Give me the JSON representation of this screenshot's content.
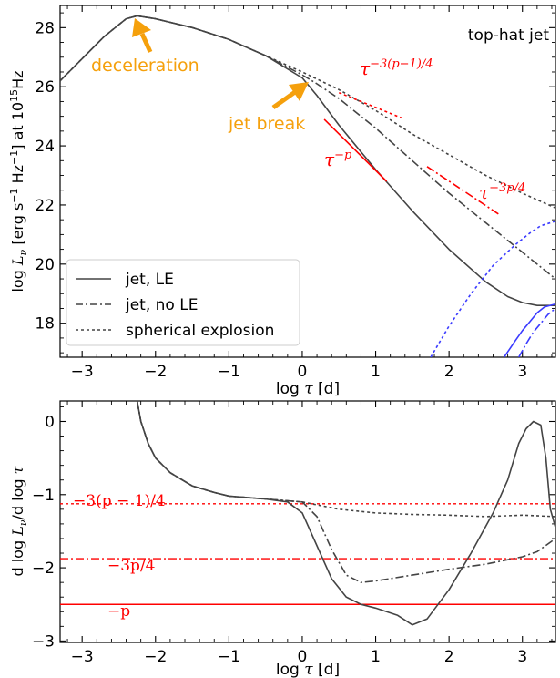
{
  "chart_data": [
    {
      "type": "line",
      "xlabel": "log τ [d]",
      "ylabel": "log L_ν [erg s⁻¹ Hz⁻¹] at 10¹⁵Hz",
      "xlim": [
        -3.3,
        3.45
      ],
      "ylim": [
        16.85,
        28.75
      ],
      "xticks": [
        -3,
        -2,
        -1,
        0,
        1,
        2,
        3
      ],
      "yticks": [
        18,
        20,
        22,
        24,
        26,
        28
      ],
      "title_inset": "top-hat jet",
      "annotations": {
        "deceleration": "deceleration",
        "jet_break": "jet break",
        "slope_spherical": "τ^{-3(p-1)/4}",
        "slope_le": "τ^{-p}",
        "slope_nole": "τ^{-3p/4}"
      },
      "legend": {
        "position": "lower-left",
        "entries": [
          "jet, LE",
          "jet, no LE",
          "spherical explosion"
        ]
      },
      "series": [
        {
          "name": "jet, LE",
          "color": "#444444",
          "dash": "solid",
          "x": [
            -3.3,
            -3.0,
            -2.7,
            -2.4,
            -2.25,
            -2.0,
            -1.5,
            -1.0,
            -0.5,
            0.0,
            0.2,
            0.5,
            0.8,
            1.0,
            1.5,
            2.0,
            2.5,
            2.8,
            3.0,
            3.2,
            3.45
          ],
          "y": [
            26.2,
            26.95,
            27.7,
            28.3,
            28.4,
            28.3,
            28.0,
            27.6,
            27.05,
            26.3,
            25.7,
            24.7,
            23.8,
            23.2,
            21.8,
            20.5,
            19.4,
            18.9,
            18.7,
            18.6,
            18.6
          ]
        },
        {
          "name": "jet, no LE",
          "color": "#444444",
          "dash": "dashdot",
          "x": [
            -3.3,
            -3.0,
            -2.7,
            -2.4,
            -2.25,
            -2.0,
            -1.5,
            -1.0,
            -0.5,
            0.0,
            0.2,
            0.5,
            1.0,
            1.5,
            2.0,
            2.5,
            3.0,
            3.45
          ],
          "y": [
            26.2,
            26.95,
            27.7,
            28.3,
            28.4,
            28.3,
            28.0,
            27.6,
            27.05,
            26.4,
            26.1,
            25.6,
            24.6,
            23.5,
            22.4,
            21.4,
            20.4,
            19.5
          ]
        },
        {
          "name": "spherical explosion",
          "color": "#444444",
          "dash": "dotted",
          "x": [
            -3.3,
            -3.0,
            -2.7,
            -2.4,
            -2.25,
            -2.0,
            -1.5,
            -1.0,
            -0.5,
            0.0,
            0.5,
            1.0,
            1.5,
            2.0,
            2.5,
            3.0,
            3.45
          ],
          "y": [
            26.2,
            26.95,
            27.7,
            28.3,
            28.4,
            28.3,
            28.0,
            27.6,
            27.05,
            26.5,
            25.9,
            25.2,
            24.4,
            23.7,
            23.0,
            22.4,
            21.9
          ]
        },
        {
          "name": "",
          "color": "#3b3bff",
          "dash": "solid",
          "x": [
            2.75,
            2.9,
            3.0,
            3.1,
            3.2,
            3.3,
            3.45
          ],
          "y": [
            16.85,
            17.4,
            17.75,
            18.05,
            18.35,
            18.55,
            18.65
          ]
        },
        {
          "name": "",
          "color": "#3b3bff",
          "dash": "dashdot",
          "x": [
            2.95,
            3.05,
            3.15,
            3.25,
            3.35,
            3.45
          ],
          "y": [
            16.85,
            17.3,
            17.7,
            18.0,
            18.3,
            18.5
          ]
        },
        {
          "name": "",
          "color": "#3b3bff",
          "dash": "dotted",
          "x": [
            1.75,
            2.0,
            2.3,
            2.6,
            2.9,
            3.1,
            3.25,
            3.45
          ],
          "y": [
            16.85,
            17.9,
            19.0,
            19.95,
            20.65,
            21.05,
            21.3,
            21.45
          ]
        },
        {
          "name": "",
          "color": "#ff0000",
          "dash": "dotted",
          "x": [
            0.5,
            1.35
          ],
          "y": [
            25.8,
            24.95
          ]
        },
        {
          "name": "",
          "color": "#ff0000",
          "dash": "solid",
          "x": [
            0.3,
            1.15
          ],
          "y": [
            24.9,
            22.8
          ]
        },
        {
          "name": "",
          "color": "#ff0000",
          "dash": "dashdot",
          "x": [
            1.7,
            2.7
          ],
          "y": [
            23.3,
            21.65
          ]
        }
      ]
    },
    {
      "type": "line",
      "xlabel": "log τ [d]",
      "ylabel": "d log L_ν / d log τ",
      "xlim": [
        -3.3,
        3.45
      ],
      "ylim": [
        -3.02,
        0.28
      ],
      "xticks": [
        -3,
        -2,
        -1,
        0,
        1,
        2,
        3
      ],
      "yticks": [
        -3,
        -2,
        -1,
        0
      ],
      "hlines": [
        {
          "label": "−3(p − 1)/4",
          "y": -1.125,
          "color": "#ff0000",
          "dash": "dotted"
        },
        {
          "label": "−3p/4",
          "y": -1.875,
          "color": "#ff0000",
          "dash": "dashdot"
        },
        {
          "label": "−p",
          "y": -2.5,
          "color": "#ff0000",
          "dash": "solid"
        }
      ],
      "series": [
        {
          "name": "jet, LE",
          "color": "#444444",
          "dash": "solid",
          "x": [
            -2.25,
            -2.2,
            -2.1,
            -2.0,
            -1.8,
            -1.5,
            -1.2,
            -1.0,
            -0.5,
            -0.2,
            0.0,
            0.2,
            0.4,
            0.6,
            0.8,
            1.0,
            1.3,
            1.5,
            1.7,
            2.0,
            2.3,
            2.6,
            2.8,
            2.95,
            3.05,
            3.15,
            3.25,
            3.32,
            3.38,
            3.45
          ],
          "y": [
            0.28,
            0.0,
            -0.3,
            -0.5,
            -0.7,
            -0.88,
            -0.97,
            -1.02,
            -1.06,
            -1.1,
            -1.25,
            -1.7,
            -2.15,
            -2.4,
            -2.5,
            -2.55,
            -2.65,
            -2.78,
            -2.7,
            -2.3,
            -1.8,
            -1.25,
            -0.8,
            -0.3,
            -0.1,
            0.0,
            -0.05,
            -0.5,
            -1.2,
            -1.45
          ]
        },
        {
          "name": "jet, no LE",
          "color": "#444444",
          "dash": "dashdot",
          "x": [
            -2.25,
            -2.2,
            -2.1,
            -2.0,
            -1.8,
            -1.5,
            -1.2,
            -1.0,
            -0.5,
            0.0,
            0.2,
            0.4,
            0.6,
            0.8,
            1.0,
            1.5,
            2.0,
            2.5,
            3.0,
            3.2,
            3.45
          ],
          "y": [
            0.28,
            0.0,
            -0.3,
            -0.5,
            -0.7,
            -0.88,
            -0.97,
            -1.02,
            -1.06,
            -1.1,
            -1.3,
            -1.75,
            -2.1,
            -2.2,
            -2.18,
            -2.1,
            -2.02,
            -1.95,
            -1.85,
            -1.78,
            -1.6
          ]
        },
        {
          "name": "spherical explosion",
          "color": "#444444",
          "dash": "dotted",
          "x": [
            -2.25,
            -2.2,
            -2.1,
            -2.0,
            -1.8,
            -1.5,
            -1.2,
            -1.0,
            -0.5,
            0.0,
            0.5,
            1.0,
            1.5,
            2.0,
            2.5,
            3.0,
            3.45
          ],
          "y": [
            0.28,
            0.0,
            -0.3,
            -0.5,
            -0.7,
            -0.88,
            -0.97,
            -1.02,
            -1.06,
            -1.1,
            -1.2,
            -1.25,
            -1.27,
            -1.28,
            -1.3,
            -1.28,
            -1.3
          ]
        }
      ]
    }
  ],
  "colors": {
    "curve": "#444444",
    "blue": "#3b3bff",
    "red": "#ff0000",
    "arrow": "#f5a00c"
  }
}
